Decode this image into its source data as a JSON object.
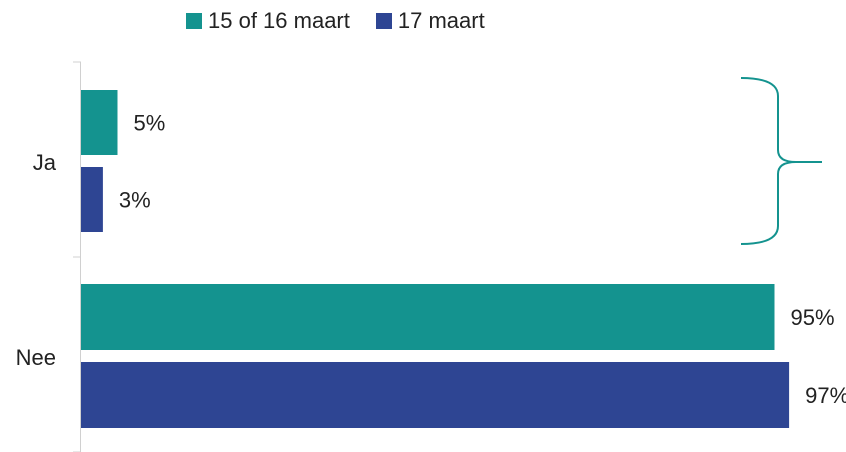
{
  "chart_data": {
    "type": "bar",
    "orientation": "horizontal",
    "categories": [
      "Ja",
      "Nee"
    ],
    "series": [
      {
        "name": "15 of 16 maart",
        "color": "#14938F",
        "values": [
          5,
          95
        ],
        "labels": [
          "5%",
          "95%"
        ]
      },
      {
        "name": "17 maart",
        "color": "#2E4593",
        "values": [
          3,
          97
        ],
        "labels": [
          "3%",
          "97%"
        ]
      }
    ],
    "xlim": [
      0,
      100
    ],
    "unit": "%",
    "grid": false,
    "legend_position": "top",
    "annotation": {
      "type": "brace",
      "target_category": "Ja",
      "color": "#14938F"
    }
  }
}
